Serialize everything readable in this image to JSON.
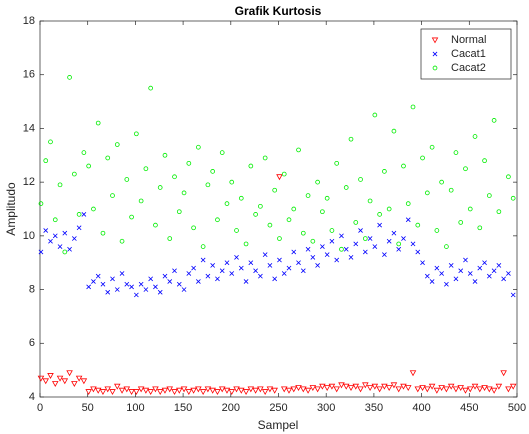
{
  "chart_data": {
    "type": "scatter",
    "title": "Grafik Kurtosis",
    "x_label": "Sampel",
    "y_label": "Amplitudo",
    "x": [
      1,
      6,
      11,
      16,
      21,
      26,
      31,
      36,
      41,
      46,
      51,
      56,
      61,
      66,
      71,
      76,
      81,
      86,
      91,
      96,
      101,
      106,
      111,
      116,
      121,
      126,
      131,
      136,
      141,
      146,
      151,
      156,
      161,
      166,
      171,
      176,
      181,
      186,
      191,
      196,
      201,
      206,
      211,
      216,
      221,
      226,
      231,
      236,
      241,
      246,
      251,
      256,
      261,
      266,
      271,
      276,
      281,
      286,
      291,
      296,
      301,
      306,
      311,
      316,
      321,
      326,
      331,
      336,
      341,
      346,
      351,
      356,
      361,
      366,
      371,
      376,
      381,
      386,
      391,
      396,
      401,
      406,
      411,
      416,
      421,
      426,
      431,
      436,
      441,
      446,
      451,
      456,
      461,
      466,
      471,
      476,
      481,
      486,
      491,
      496
    ],
    "series": [
      {
        "name": "Normal",
        "color": "#ff0000",
        "marker": "triangle-down",
        "values": [
          4.7,
          4.6,
          4.8,
          4.5,
          4.7,
          4.6,
          4.9,
          4.5,
          4.7,
          4.6,
          4.2,
          4.3,
          4.25,
          4.2,
          4.3,
          4.2,
          4.4,
          4.25,
          4.3,
          4.2,
          4.2,
          4.3,
          4.25,
          4.2,
          4.3,
          4.2,
          4.25,
          4.3,
          4.2,
          4.25,
          4.3,
          4.2,
          4.25,
          4.3,
          4.2,
          4.3,
          4.25,
          4.2,
          4.3,
          4.25,
          4.2,
          4.3,
          4.25,
          4.2,
          4.3,
          4.25,
          4.3,
          4.2,
          4.3,
          4.25,
          12.2,
          4.3,
          4.25,
          4.3,
          4.35,
          4.3,
          4.25,
          4.35,
          4.3,
          4.4,
          4.35,
          4.4,
          4.3,
          4.45,
          4.4,
          4.35,
          4.4,
          4.3,
          4.45,
          4.35,
          4.4,
          4.3,
          4.4,
          4.35,
          4.45,
          4.3,
          4.4,
          4.35,
          4.9,
          4.3,
          4.35,
          4.3,
          4.4,
          4.25,
          4.35,
          4.3,
          4.4,
          4.3,
          4.35,
          4.25,
          4.3,
          4.4,
          4.3,
          4.35,
          4.3,
          4.25,
          4.4,
          4.9,
          4.3,
          4.4
        ]
      },
      {
        "name": "Cacat1",
        "color": "#0000ff",
        "marker": "x",
        "values": [
          9.4,
          10.2,
          9.8,
          10.0,
          9.6,
          10.1,
          9.5,
          9.9,
          10.3,
          10.8,
          8.1,
          8.3,
          8.5,
          8.2,
          7.9,
          8.4,
          8.0,
          8.6,
          8.2,
          8.1,
          7.8,
          8.2,
          8.0,
          8.4,
          8.1,
          7.9,
          8.5,
          8.3,
          8.7,
          8.2,
          8.0,
          8.6,
          8.8,
          8.3,
          9.1,
          8.5,
          8.9,
          8.4,
          8.7,
          9.0,
          8.6,
          9.2,
          8.8,
          8.3,
          9.0,
          8.7,
          8.5,
          9.3,
          8.9,
          8.4,
          9.1,
          8.6,
          8.8,
          9.4,
          9.0,
          8.7,
          9.5,
          9.2,
          8.9,
          9.6,
          9.3,
          9.8,
          9.1,
          10.0,
          9.5,
          9.2,
          9.7,
          10.2,
          9.4,
          9.9,
          9.6,
          10.4,
          9.3,
          9.8,
          10.1,
          9.5,
          9.9,
          10.6,
          9.7,
          9.4,
          9.0,
          8.5,
          8.3,
          8.8,
          8.6,
          8.2,
          8.9,
          8.4,
          8.7,
          9.1,
          8.6,
          8.3,
          8.8,
          9.0,
          8.5,
          8.7,
          8.9,
          8.4,
          8.6,
          7.8
        ]
      },
      {
        "name": "Cacat2",
        "color": "#00ee00",
        "marker": "circle",
        "values": [
          11.2,
          12.8,
          13.5,
          10.6,
          11.9,
          9.4,
          15.9,
          12.3,
          10.8,
          13.1,
          12.6,
          11.0,
          14.2,
          10.1,
          12.9,
          11.5,
          13.4,
          9.8,
          12.1,
          10.7,
          13.8,
          11.3,
          12.5,
          15.5,
          10.4,
          11.8,
          13.0,
          9.9,
          12.2,
          10.9,
          11.6,
          12.7,
          10.3,
          13.3,
          9.6,
          11.9,
          12.4,
          10.6,
          13.1,
          11.2,
          12.0,
          10.2,
          11.4,
          9.7,
          12.6,
          10.8,
          11.1,
          12.9,
          10.4,
          11.7,
          9.9,
          12.3,
          10.6,
          11.0,
          13.2,
          10.1,
          11.5,
          9.8,
          12.0,
          10.9,
          11.4,
          10.2,
          12.7,
          9.5,
          11.8,
          13.6,
          10.5,
          12.1,
          9.9,
          11.3,
          14.5,
          10.8,
          12.4,
          11.0,
          13.9,
          9.7,
          12.6,
          11.2,
          14.8,
          10.4,
          12.9,
          11.6,
          13.3,
          10.2,
          12.0,
          9.6,
          11.7,
          13.1,
          10.5,
          12.5,
          11.0,
          13.7,
          10.3,
          12.8,
          11.5,
          14.3,
          10.9,
          16.0,
          12.2,
          11.4
        ]
      }
    ],
    "xlim": [
      0,
      500
    ],
    "xticks": [
      0,
      50,
      100,
      150,
      200,
      250,
      300,
      350,
      400,
      450,
      500
    ],
    "ylim": [
      4,
      18
    ],
    "yticks": [
      4,
      6,
      8,
      10,
      12,
      14,
      16,
      18
    ],
    "legend": "northeast"
  }
}
